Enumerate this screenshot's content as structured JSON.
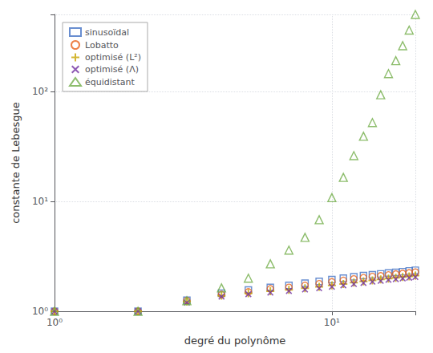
{
  "chart_data": {
    "type": "scatter",
    "xlabel": "degré du polynôme",
    "ylabel": "constante de Lebesgue",
    "x": [
      1,
      2,
      3,
      4,
      5,
      6,
      7,
      8,
      9,
      10,
      11,
      12,
      13,
      14,
      15,
      16,
      17,
      18,
      19,
      20
    ],
    "series": [
      {
        "name": "sinusoïdal",
        "color": "#4472C4",
        "marker": "square",
        "values": [
          1.0,
          1.0,
          1.26,
          1.46,
          1.56,
          1.65,
          1.72,
          1.8,
          1.87,
          1.94,
          2.0,
          2.06,
          2.11,
          2.15,
          2.19,
          2.23,
          2.26,
          2.29,
          2.33,
          2.36
        ]
      },
      {
        "name": "Lobatto",
        "color": "#E8611A",
        "marker": "circle",
        "values": [
          1.0,
          1.0,
          1.25,
          1.42,
          1.5,
          1.6,
          1.65,
          1.72,
          1.78,
          1.85,
          1.91,
          1.97,
          2.02,
          2.07,
          2.1,
          2.14,
          2.18,
          2.21,
          2.24,
          2.27
        ]
      },
      {
        "name": "optimisé (L²)",
        "color": "#C8A400",
        "marker": "plus",
        "values": [
          1.0,
          1.0,
          1.23,
          1.39,
          1.46,
          1.52,
          1.57,
          1.62,
          1.67,
          1.72,
          1.77,
          1.82,
          1.87,
          1.91,
          1.95,
          1.98,
          2.02,
          2.05,
          2.08,
          2.11
        ]
      },
      {
        "name": "optimisé (Λ)",
        "color": "#7030A0",
        "marker": "x",
        "values": [
          1.0,
          1.0,
          1.2,
          1.36,
          1.43,
          1.48,
          1.53,
          1.58,
          1.62,
          1.67,
          1.72,
          1.77,
          1.81,
          1.86,
          1.89,
          1.93,
          1.96,
          1.99,
          2.02,
          2.05
        ]
      },
      {
        "name": "équidistant",
        "color": "#70AD47",
        "marker": "triangle",
        "values": [
          1.0,
          1.0,
          1.25,
          1.63,
          2.0,
          2.7,
          3.6,
          4.7,
          6.8,
          10.8,
          16.5,
          26.0,
          39.0,
          52.0,
          93.0,
          145.0,
          190.0,
          260.0,
          360.0,
          500.0
        ]
      }
    ],
    "log": true,
    "xlim": [
      1,
      20
    ],
    "ylim": [
      1,
      500
    ],
    "xticks": [
      {
        "value": 1,
        "label": "10⁰"
      },
      {
        "value": 10,
        "label": "10¹"
      }
    ],
    "yticks": [
      {
        "value": 1,
        "label": "10⁰"
      },
      {
        "value": 10,
        "label": "10¹"
      },
      {
        "value": 100,
        "label": "10²"
      }
    ],
    "grid": true,
    "legend": "upper left"
  }
}
